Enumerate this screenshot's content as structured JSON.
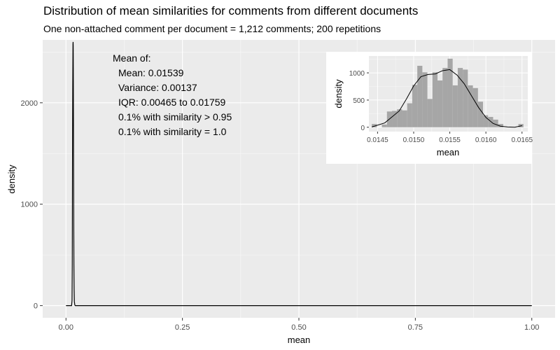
{
  "chart_data": [
    {
      "type": "area",
      "title": "Distribution of mean similarities for comments from different documents",
      "subtitle": "One non-attached comment per document = 1,212 comments; 200 repetitions",
      "xlabel": "mean",
      "ylabel": "density",
      "xlim": [
        -0.05,
        1.05
      ],
      "ylim": [
        -120,
        2620
      ],
      "x_ticks": [
        0.0,
        0.25,
        0.5,
        0.75,
        1.0
      ],
      "x_tick_labels": [
        "0.00",
        "0.25",
        "0.50",
        "0.75",
        "1.00"
      ],
      "y_ticks": [
        0,
        1000,
        2000
      ],
      "y_tick_labels": [
        "0",
        "1000",
        "2000"
      ],
      "grid": true,
      "series": [
        {
          "x": [
            0.0,
            0.012,
            0.013,
            0.0135,
            0.014,
            0.0145,
            0.015,
            0.0153,
            0.0155,
            0.0157,
            0.016,
            0.0165,
            0.017,
            0.0175,
            0.018,
            0.019,
            0.02,
            0.05,
            0.2,
            0.5,
            0.75,
            1.0
          ],
          "y": [
            0,
            0,
            50,
            400,
            1450,
            2130,
            2580,
            2600,
            2560,
            2350,
            1850,
            1050,
            400,
            160,
            40,
            5,
            0,
            0,
            0,
            0,
            0,
            0
          ]
        }
      ],
      "annotations": [
        "Mean of:",
        "Mean: 0.01539",
        "Variance: 0.00137",
        "IQR: 0.00465 to 0.01759",
        "0.1% with similarity > 0.95",
        "0.1% with similarity = 1.0"
      ]
    },
    {
      "type": "bar",
      "xlabel": "mean",
      "ylabel": "density",
      "xlim": [
        0.01438,
        0.01658
      ],
      "ylim": [
        -80,
        1310
      ],
      "x_ticks": [
        0.0145,
        0.015,
        0.0155,
        0.016,
        0.0165
      ],
      "x_tick_labels": [
        "0.0145",
        "0.0150",
        "0.0155",
        "0.0160",
        "0.0165"
      ],
      "y_ticks": [
        0,
        500,
        1000
      ],
      "y_tick_labels": [
        "0",
        "500",
        "1000"
      ],
      "grid": true,
      "histogram": {
        "bin_width": 7e-05,
        "bin_starts": [
          0.01442,
          0.01449,
          0.01456,
          0.01463,
          0.0147,
          0.01477,
          0.01484,
          0.01491,
          0.01498,
          0.01505,
          0.01512,
          0.01519,
          0.01526,
          0.01533,
          0.0154,
          0.01547,
          0.01554,
          0.01561,
          0.01568,
          0.01575,
          0.01582,
          0.01589,
          0.01596,
          0.01603,
          0.0161,
          0.01617,
          0.01624,
          0.01631,
          0.01638,
          0.01645
        ],
        "values": [
          60,
          0,
          50,
          290,
          300,
          330,
          310,
          440,
          780,
          1130,
          1010,
          520,
          1010,
          860,
          1090,
          1260,
          770,
          1090,
          1060,
          770,
          720,
          470,
          220,
          190,
          140,
          60,
          0,
          0,
          0,
          60
        ]
      },
      "density_curve": {
        "x": [
          0.01442,
          0.0146,
          0.0148,
          0.0149,
          0.015,
          0.0151,
          0.0152,
          0.0153,
          0.0154,
          0.0155,
          0.0156,
          0.0157,
          0.0158,
          0.0159,
          0.016,
          0.0161,
          0.0162,
          0.0163,
          0.0164,
          0.0165
        ],
        "y": [
          5,
          80,
          300,
          520,
          760,
          930,
          970,
          980,
          1040,
          1060,
          960,
          800,
          580,
          360,
          180,
          70,
          20,
          5,
          0,
          30
        ]
      }
    }
  ]
}
